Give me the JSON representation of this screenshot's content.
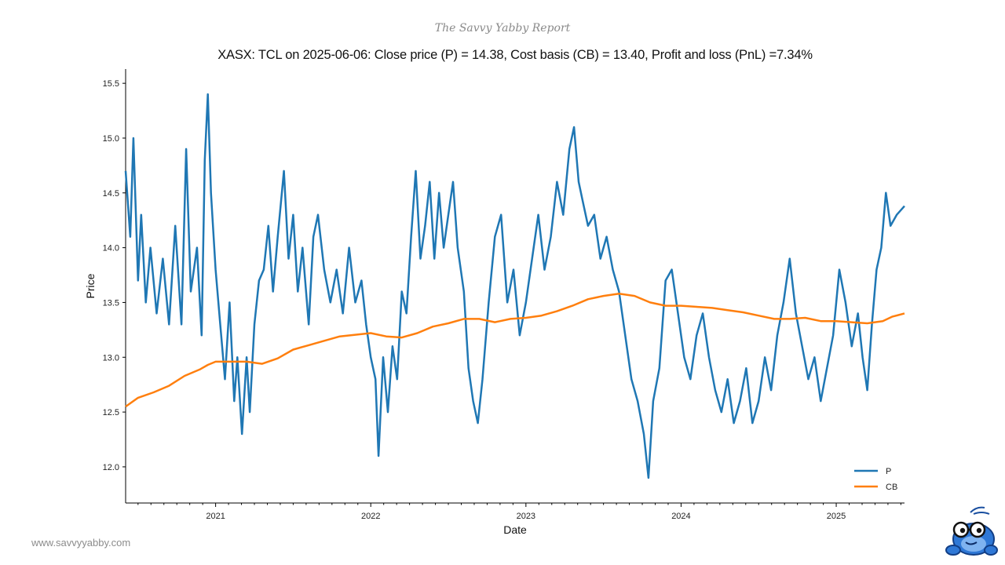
{
  "report": {
    "title": "The Savvy Yabby Report",
    "website": "www.savvyyabby.com"
  },
  "colors": {
    "price": "#1f77b4",
    "cost_basis": "#ff7f0e",
    "axis": "#000000"
  },
  "chart_data": {
    "type": "line",
    "title": "XASX: TCL on 2025-06-06: Close price (P) = 14.38, Cost basis (CB) = 13.40, Profit and loss (PnL) =7.34%",
    "xlabel": "Date",
    "ylabel": "Price",
    "xlim": [
      2020.42,
      2025.44
    ],
    "ylim": [
      11.67,
      15.63
    ],
    "x_ticks": [
      {
        "value": 2021,
        "label": "2021"
      },
      {
        "value": 2022,
        "label": "2022"
      },
      {
        "value": 2023,
        "label": "2023"
      },
      {
        "value": 2024,
        "label": "2024"
      },
      {
        "value": 2025,
        "label": "2025"
      }
    ],
    "y_ticks": [
      {
        "value": 12.0,
        "label": "12.0"
      },
      {
        "value": 12.5,
        "label": "12.5"
      },
      {
        "value": 13.0,
        "label": "13.0"
      },
      {
        "value": 13.5,
        "label": "13.5"
      },
      {
        "value": 14.0,
        "label": "14.0"
      },
      {
        "value": 14.5,
        "label": "14.5"
      },
      {
        "value": 15.0,
        "label": "15.0"
      },
      {
        "value": 15.5,
        "label": "15.5"
      }
    ],
    "legend": {
      "position": "bottom-right",
      "entries": [
        "P",
        "CB"
      ]
    },
    "series": [
      {
        "name": "P",
        "color": "#1f77b4",
        "points": [
          [
            2020.42,
            14.7
          ],
          [
            2020.45,
            14.1
          ],
          [
            2020.47,
            15.0
          ],
          [
            2020.5,
            13.7
          ],
          [
            2020.52,
            14.3
          ],
          [
            2020.55,
            13.5
          ],
          [
            2020.58,
            14.0
          ],
          [
            2020.62,
            13.4
          ],
          [
            2020.66,
            13.9
          ],
          [
            2020.7,
            13.3
          ],
          [
            2020.74,
            14.2
          ],
          [
            2020.78,
            13.3
          ],
          [
            2020.81,
            14.9
          ],
          [
            2020.84,
            13.6
          ],
          [
            2020.88,
            14.0
          ],
          [
            2020.91,
            13.2
          ],
          [
            2020.93,
            14.8
          ],
          [
            2020.95,
            15.4
          ],
          [
            2020.97,
            14.5
          ],
          [
            2021.0,
            13.8
          ],
          [
            2021.03,
            13.3
          ],
          [
            2021.06,
            12.8
          ],
          [
            2021.09,
            13.5
          ],
          [
            2021.12,
            12.6
          ],
          [
            2021.14,
            13.0
          ],
          [
            2021.17,
            12.3
          ],
          [
            2021.2,
            13.0
          ],
          [
            2021.22,
            12.5
          ],
          [
            2021.25,
            13.3
          ],
          [
            2021.28,
            13.7
          ],
          [
            2021.31,
            13.8
          ],
          [
            2021.34,
            14.2
          ],
          [
            2021.37,
            13.6
          ],
          [
            2021.4,
            14.1
          ],
          [
            2021.44,
            14.7
          ],
          [
            2021.47,
            13.9
          ],
          [
            2021.5,
            14.3
          ],
          [
            2021.53,
            13.6
          ],
          [
            2021.56,
            14.0
          ],
          [
            2021.6,
            13.3
          ],
          [
            2021.63,
            14.1
          ],
          [
            2021.66,
            14.3
          ],
          [
            2021.7,
            13.8
          ],
          [
            2021.74,
            13.5
          ],
          [
            2021.78,
            13.8
          ],
          [
            2021.82,
            13.4
          ],
          [
            2021.86,
            14.0
          ],
          [
            2021.9,
            13.5
          ],
          [
            2021.94,
            13.7
          ],
          [
            2021.97,
            13.3
          ],
          [
            2022.0,
            13.0
          ],
          [
            2022.03,
            12.8
          ],
          [
            2022.05,
            12.1
          ],
          [
            2022.08,
            13.0
          ],
          [
            2022.11,
            12.5
          ],
          [
            2022.14,
            13.1
          ],
          [
            2022.17,
            12.8
          ],
          [
            2022.2,
            13.6
          ],
          [
            2022.23,
            13.4
          ],
          [
            2022.26,
            14.1
          ],
          [
            2022.29,
            14.7
          ],
          [
            2022.32,
            13.9
          ],
          [
            2022.35,
            14.2
          ],
          [
            2022.38,
            14.6
          ],
          [
            2022.41,
            13.9
          ],
          [
            2022.44,
            14.5
          ],
          [
            2022.47,
            14.0
          ],
          [
            2022.5,
            14.3
          ],
          [
            2022.53,
            14.6
          ],
          [
            2022.56,
            14.0
          ],
          [
            2022.6,
            13.6
          ],
          [
            2022.63,
            12.9
          ],
          [
            2022.66,
            12.6
          ],
          [
            2022.69,
            12.4
          ],
          [
            2022.72,
            12.8
          ],
          [
            2022.76,
            13.5
          ],
          [
            2022.8,
            14.1
          ],
          [
            2022.84,
            14.3
          ],
          [
            2022.88,
            13.5
          ],
          [
            2022.92,
            13.8
          ],
          [
            2022.96,
            13.2
          ],
          [
            2023.0,
            13.5
          ],
          [
            2023.04,
            13.9
          ],
          [
            2023.08,
            14.3
          ],
          [
            2023.12,
            13.8
          ],
          [
            2023.16,
            14.1
          ],
          [
            2023.2,
            14.6
          ],
          [
            2023.24,
            14.3
          ],
          [
            2023.28,
            14.9
          ],
          [
            2023.31,
            15.1
          ],
          [
            2023.34,
            14.6
          ],
          [
            2023.37,
            14.4
          ],
          [
            2023.4,
            14.2
          ],
          [
            2023.44,
            14.3
          ],
          [
            2023.48,
            13.9
          ],
          [
            2023.52,
            14.1
          ],
          [
            2023.56,
            13.8
          ],
          [
            2023.6,
            13.6
          ],
          [
            2023.64,
            13.2
          ],
          [
            2023.68,
            12.8
          ],
          [
            2023.72,
            12.6
          ],
          [
            2023.76,
            12.3
          ],
          [
            2023.79,
            11.9
          ],
          [
            2023.82,
            12.6
          ],
          [
            2023.86,
            12.9
          ],
          [
            2023.9,
            13.7
          ],
          [
            2023.94,
            13.8
          ],
          [
            2023.98,
            13.4
          ],
          [
            2024.02,
            13.0
          ],
          [
            2024.06,
            12.8
          ],
          [
            2024.1,
            13.2
          ],
          [
            2024.14,
            13.4
          ],
          [
            2024.18,
            13.0
          ],
          [
            2024.22,
            12.7
          ],
          [
            2024.26,
            12.5
          ],
          [
            2024.3,
            12.8
          ],
          [
            2024.34,
            12.4
          ],
          [
            2024.38,
            12.6
          ],
          [
            2024.42,
            12.9
          ],
          [
            2024.46,
            12.4
          ],
          [
            2024.5,
            12.6
          ],
          [
            2024.54,
            13.0
          ],
          [
            2024.58,
            12.7
          ],
          [
            2024.62,
            13.2
          ],
          [
            2024.66,
            13.5
          ],
          [
            2024.7,
            13.9
          ],
          [
            2024.74,
            13.4
          ],
          [
            2024.78,
            13.1
          ],
          [
            2024.82,
            12.8
          ],
          [
            2024.86,
            13.0
          ],
          [
            2024.9,
            12.6
          ],
          [
            2024.94,
            12.9
          ],
          [
            2024.98,
            13.2
          ],
          [
            2025.02,
            13.8
          ],
          [
            2025.06,
            13.5
          ],
          [
            2025.1,
            13.1
          ],
          [
            2025.14,
            13.4
          ],
          [
            2025.17,
            13.0
          ],
          [
            2025.2,
            12.7
          ],
          [
            2025.23,
            13.3
          ],
          [
            2025.26,
            13.8
          ],
          [
            2025.29,
            14.0
          ],
          [
            2025.32,
            14.5
          ],
          [
            2025.35,
            14.2
          ],
          [
            2025.39,
            14.3
          ],
          [
            2025.44,
            14.38
          ]
        ]
      },
      {
        "name": "CB",
        "color": "#ff7f0e",
        "points": [
          [
            2020.42,
            12.55
          ],
          [
            2020.5,
            12.63
          ],
          [
            2020.6,
            12.68
          ],
          [
            2020.7,
            12.74
          ],
          [
            2020.8,
            12.83
          ],
          [
            2020.9,
            12.89
          ],
          [
            2020.95,
            12.93
          ],
          [
            2021.0,
            12.96
          ],
          [
            2021.2,
            12.96
          ],
          [
            2021.3,
            12.94
          ],
          [
            2021.4,
            12.99
          ],
          [
            2021.5,
            13.07
          ],
          [
            2021.6,
            13.11
          ],
          [
            2021.7,
            13.15
          ],
          [
            2021.8,
            13.19
          ],
          [
            2022.0,
            13.22
          ],
          [
            2022.1,
            13.19
          ],
          [
            2022.2,
            13.18
          ],
          [
            2022.3,
            13.22
          ],
          [
            2022.4,
            13.28
          ],
          [
            2022.5,
            13.31
          ],
          [
            2022.6,
            13.35
          ],
          [
            2022.7,
            13.35
          ],
          [
            2022.8,
            13.32
          ],
          [
            2022.9,
            13.35
          ],
          [
            2023.0,
            13.36
          ],
          [
            2023.1,
            13.38
          ],
          [
            2023.2,
            13.42
          ],
          [
            2023.3,
            13.47
          ],
          [
            2023.4,
            13.53
          ],
          [
            2023.5,
            13.56
          ],
          [
            2023.6,
            13.58
          ],
          [
            2023.7,
            13.56
          ],
          [
            2023.8,
            13.5
          ],
          [
            2023.9,
            13.47
          ],
          [
            2024.0,
            13.47
          ],
          [
            2024.1,
            13.46
          ],
          [
            2024.2,
            13.45
          ],
          [
            2024.3,
            13.43
          ],
          [
            2024.4,
            13.41
          ],
          [
            2024.5,
            13.38
          ],
          [
            2024.6,
            13.35
          ],
          [
            2024.7,
            13.35
          ],
          [
            2024.8,
            13.36
          ],
          [
            2024.9,
            13.33
          ],
          [
            2025.0,
            13.33
          ],
          [
            2025.1,
            13.32
          ],
          [
            2025.2,
            13.31
          ],
          [
            2025.3,
            13.33
          ],
          [
            2025.36,
            13.37
          ],
          [
            2025.44,
            13.4
          ]
        ]
      }
    ]
  }
}
